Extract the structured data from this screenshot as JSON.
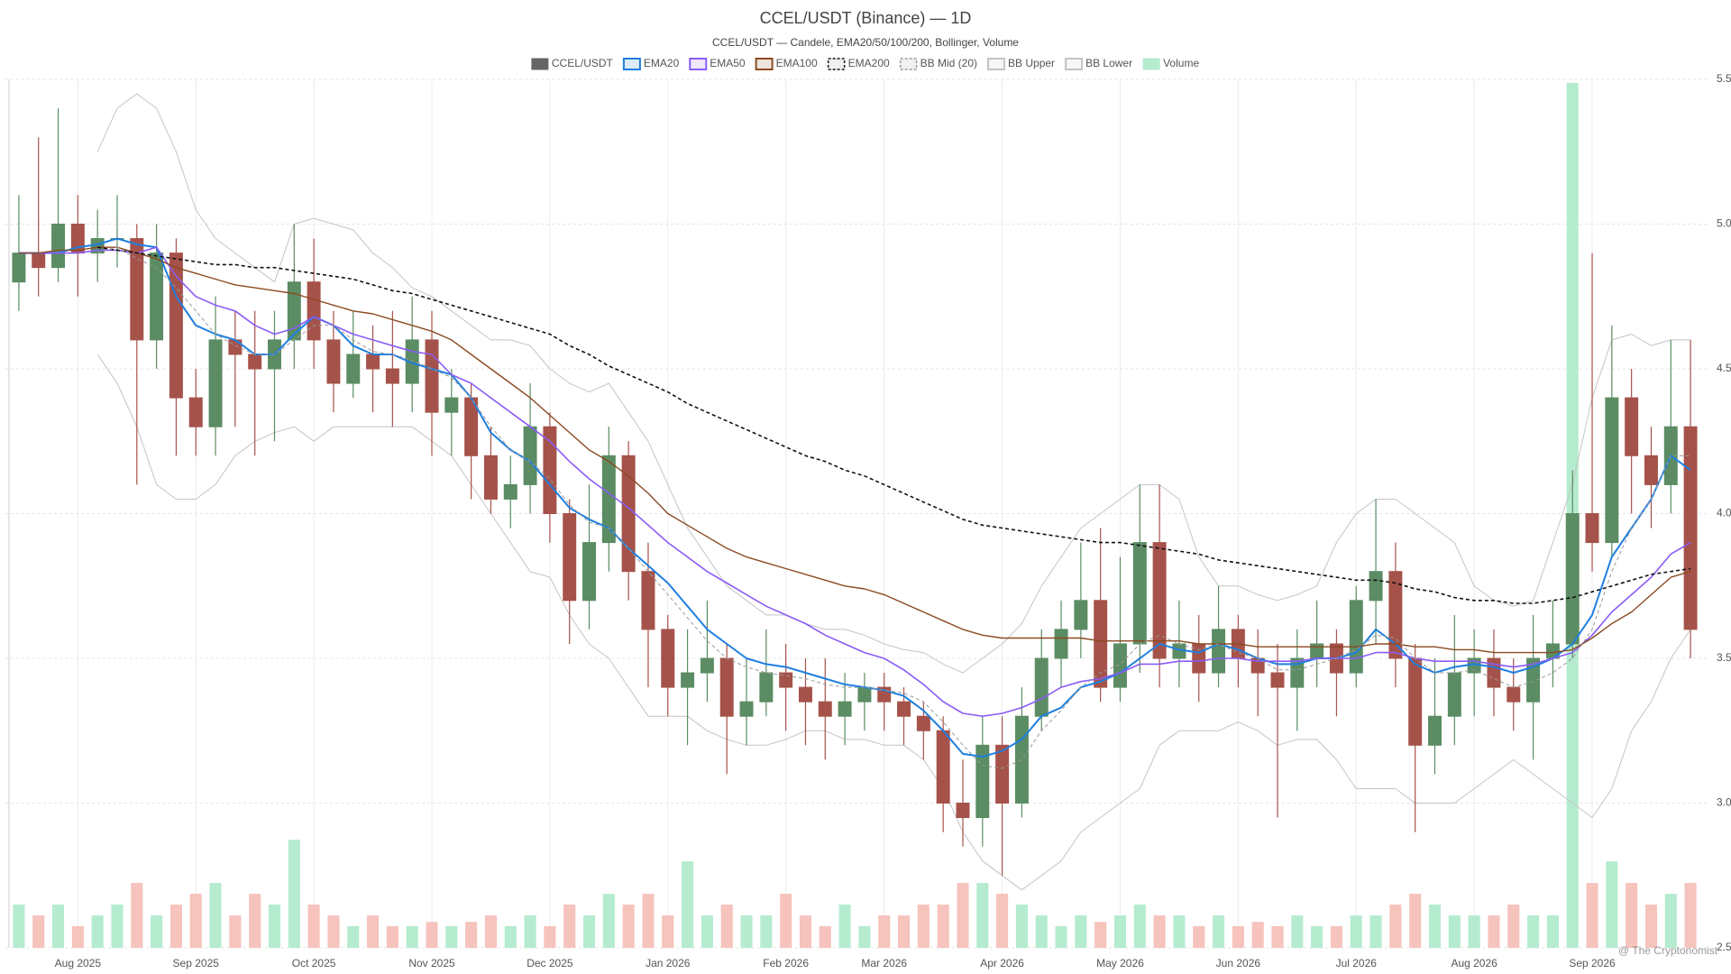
{
  "chart_data": {
    "type": "candlestick",
    "title": "CCEL/USDT (Binance) — 1D",
    "subtitle": "CCEL/USDT — Candele, EMA20/50/100/200, Bollinger, Volume",
    "watermark": "@ The Cryptonomist",
    "legend": "top",
    "grid": true,
    "candle_name": "CCEL/USDT",
    "candle_color": "#666666",
    "up_color": "#5b8c63",
    "down_color": "#a5524a",
    "categories": [
      null,
      null,
      null,
      "Aug 2025",
      null,
      null,
      null,
      null,
      null,
      "Sep 2025",
      null,
      null,
      null,
      null,
      null,
      "Oct 2025",
      null,
      null,
      null,
      null,
      null,
      "Nov 2025",
      null,
      null,
      null,
      null,
      null,
      "Dec 2025",
      null,
      null,
      null,
      null,
      null,
      "Jan 2026",
      null,
      null,
      null,
      null,
      null,
      "Feb 2026",
      null,
      null,
      null,
      null,
      "Mar 2026",
      null,
      null,
      null,
      null,
      null,
      "Apr 2026",
      null,
      null,
      null,
      null,
      null,
      "May 2026",
      null,
      null,
      null,
      null,
      null,
      "Jun 2026",
      null,
      null,
      null,
      null,
      null,
      "Jul 2026",
      null,
      null,
      null,
      null,
      null,
      "Aug 2026",
      null,
      null,
      null,
      null,
      null,
      "Sep 2026",
      null,
      null,
      null,
      null,
      null
    ],
    "open": [
      4.8,
      4.9,
      4.85,
      5.0,
      4.9,
      4.95,
      4.95,
      4.6,
      4.9,
      4.4,
      4.3,
      4.6,
      4.55,
      4.5,
      4.6,
      4.8,
      4.6,
      4.45,
      4.55,
      4.5,
      4.45,
      4.6,
      4.35,
      4.4,
      4.2,
      4.05,
      4.1,
      4.3,
      4.0,
      3.7,
      3.9,
      4.2,
      3.8,
      3.6,
      3.4,
      3.45,
      3.5,
      3.3,
      3.35,
      3.45,
      3.4,
      3.35,
      3.3,
      3.35,
      3.4,
      3.35,
      3.3,
      3.25,
      3.0,
      2.95,
      3.2,
      3.0,
      3.3,
      3.5,
      3.6,
      3.7,
      3.4,
      3.55,
      3.9,
      3.5,
      3.55,
      3.45,
      3.6,
      3.5,
      3.45,
      3.4,
      3.5,
      3.55,
      3.45,
      3.7,
      3.8,
      3.5,
      3.2,
      3.3,
      3.45,
      3.5,
      3.4,
      3.35,
      3.5,
      3.55,
      4.0,
      3.9,
      4.4,
      4.2,
      4.1,
      4.3
    ],
    "high": [
      5.1,
      5.3,
      5.4,
      5.1,
      5.05,
      5.1,
      5.0,
      5.0,
      4.95,
      4.5,
      4.75,
      4.7,
      4.7,
      4.7,
      5.0,
      4.95,
      4.7,
      4.7,
      4.65,
      4.7,
      4.75,
      4.7,
      4.5,
      4.45,
      4.3,
      4.2,
      4.45,
      4.35,
      4.05,
      4.1,
      4.3,
      4.25,
      3.9,
      3.65,
      3.6,
      3.7,
      3.55,
      3.5,
      3.6,
      3.55,
      3.5,
      3.5,
      3.45,
      3.45,
      3.45,
      3.4,
      3.35,
      3.3,
      3.15,
      3.3,
      3.3,
      3.4,
      3.6,
      3.7,
      3.9,
      3.95,
      3.85,
      4.1,
      4.1,
      3.7,
      3.65,
      3.75,
      3.65,
      3.6,
      3.55,
      3.6,
      3.7,
      3.6,
      3.75,
      4.05,
      3.9,
      3.55,
      3.5,
      3.65,
      3.6,
      3.6,
      3.5,
      3.65,
      3.7,
      4.15,
      4.9,
      4.65,
      4.5,
      4.3,
      4.6,
      4.6
    ],
    "low": [
      4.7,
      4.75,
      4.8,
      4.75,
      4.8,
      4.85,
      4.1,
      4.5,
      4.2,
      4.2,
      4.2,
      4.3,
      4.2,
      4.25,
      4.5,
      4.5,
      4.35,
      4.4,
      4.35,
      4.3,
      4.35,
      4.2,
      4.2,
      4.05,
      4.0,
      3.95,
      4.0,
      3.9,
      3.55,
      3.6,
      3.8,
      3.7,
      3.4,
      3.3,
      3.2,
      3.35,
      3.1,
      3.2,
      3.3,
      3.25,
      3.2,
      3.15,
      3.2,
      3.25,
      3.25,
      3.2,
      3.15,
      2.9,
      2.85,
      2.85,
      2.75,
      2.95,
      3.25,
      3.4,
      3.5,
      3.35,
      3.35,
      3.45,
      3.4,
      3.4,
      3.35,
      3.4,
      3.4,
      3.3,
      2.95,
      3.25,
      3.4,
      3.3,
      3.4,
      3.55,
      3.4,
      2.9,
      3.1,
      3.2,
      3.3,
      3.3,
      3.25,
      3.15,
      3.4,
      3.5,
      3.8,
      3.85,
      4.0,
      3.95,
      4.0,
      3.5
    ],
    "close": [
      4.9,
      4.85,
      5.0,
      4.9,
      4.95,
      4.95,
      4.6,
      4.9,
      4.4,
      4.3,
      4.6,
      4.55,
      4.5,
      4.6,
      4.8,
      4.6,
      4.45,
      4.55,
      4.5,
      4.45,
      4.6,
      4.35,
      4.4,
      4.2,
      4.05,
      4.1,
      4.3,
      4.0,
      3.7,
      3.9,
      4.2,
      3.8,
      3.6,
      3.4,
      3.45,
      3.5,
      3.3,
      3.35,
      3.45,
      3.4,
      3.35,
      3.3,
      3.35,
      3.4,
      3.35,
      3.3,
      3.25,
      3.0,
      2.95,
      3.2,
      3.0,
      3.3,
      3.5,
      3.6,
      3.7,
      3.4,
      3.55,
      3.9,
      3.5,
      3.55,
      3.45,
      3.6,
      3.5,
      3.45,
      3.4,
      3.5,
      3.55,
      3.45,
      3.7,
      3.8,
      3.5,
      3.2,
      3.3,
      3.45,
      3.5,
      3.4,
      3.35,
      3.5,
      3.55,
      4.0,
      3.9,
      4.4,
      4.2,
      4.1,
      4.3,
      3.6
    ],
    "series": [
      {
        "name": "EMA20",
        "color": "#1e7fe0",
        "width": 2,
        "dash": false,
        "values": [
          4.9,
          4.9,
          4.9,
          4.92,
          4.93,
          4.95,
          4.93,
          4.92,
          4.75,
          4.65,
          4.62,
          4.6,
          4.55,
          4.55,
          4.62,
          4.68,
          4.65,
          4.58,
          4.55,
          4.55,
          4.52,
          4.5,
          4.48,
          4.4,
          4.28,
          4.22,
          4.18,
          4.1,
          4.02,
          3.98,
          3.95,
          3.88,
          3.82,
          3.76,
          3.68,
          3.6,
          3.55,
          3.5,
          3.48,
          3.47,
          3.45,
          3.43,
          3.41,
          3.4,
          3.39,
          3.37,
          3.32,
          3.25,
          3.17,
          3.16,
          3.18,
          3.22,
          3.3,
          3.33,
          3.4,
          3.42,
          3.45,
          3.5,
          3.55,
          3.53,
          3.52,
          3.55,
          3.53,
          3.5,
          3.48,
          3.48,
          3.5,
          3.5,
          3.52,
          3.6,
          3.55,
          3.48,
          3.45,
          3.47,
          3.48,
          3.47,
          3.45,
          3.47,
          3.5,
          3.55,
          3.65,
          3.85,
          3.95,
          4.05,
          4.2,
          4.15
        ]
      },
      {
        "name": "EMA50",
        "color": "#8b5cf6",
        "width": 1.6,
        "dash": false,
        "values": [
          4.9,
          4.9,
          4.9,
          4.9,
          4.91,
          4.91,
          4.9,
          4.92,
          4.82,
          4.75,
          4.72,
          4.7,
          4.65,
          4.62,
          4.64,
          4.68,
          4.65,
          4.62,
          4.6,
          4.58,
          4.56,
          4.55,
          4.48,
          4.45,
          4.4,
          4.35,
          4.3,
          4.25,
          4.18,
          4.12,
          4.07,
          4.02,
          3.96,
          3.9,
          3.85,
          3.8,
          3.76,
          3.72,
          3.68,
          3.65,
          3.62,
          3.58,
          3.55,
          3.52,
          3.5,
          3.46,
          3.41,
          3.35,
          3.31,
          3.3,
          3.31,
          3.33,
          3.36,
          3.4,
          3.42,
          3.43,
          3.45,
          3.48,
          3.48,
          3.49,
          3.49,
          3.5,
          3.5,
          3.49,
          3.49,
          3.49,
          3.5,
          3.5,
          3.5,
          3.52,
          3.52,
          3.5,
          3.49,
          3.49,
          3.49,
          3.48,
          3.47,
          3.48,
          3.5,
          3.52,
          3.58,
          3.66,
          3.72,
          3.78,
          3.86,
          3.9
        ]
      },
      {
        "name": "EMA100",
        "color": "#8b4a22",
        "width": 1.4,
        "dash": false,
        "values": [
          4.9,
          4.9,
          4.91,
          4.91,
          4.92,
          4.92,
          4.9,
          4.88,
          4.85,
          4.83,
          4.81,
          4.79,
          4.78,
          4.77,
          4.76,
          4.74,
          4.72,
          4.7,
          4.69,
          4.67,
          4.65,
          4.63,
          4.6,
          4.55,
          4.5,
          4.45,
          4.4,
          4.34,
          4.28,
          4.22,
          4.18,
          4.13,
          4.07,
          4.0,
          3.96,
          3.92,
          3.88,
          3.85,
          3.83,
          3.81,
          3.79,
          3.77,
          3.75,
          3.74,
          3.72,
          3.69,
          3.66,
          3.63,
          3.6,
          3.58,
          3.57,
          3.57,
          3.57,
          3.57,
          3.57,
          3.56,
          3.56,
          3.56,
          3.56,
          3.56,
          3.55,
          3.55,
          3.55,
          3.54,
          3.54,
          3.54,
          3.54,
          3.54,
          3.54,
          3.55,
          3.55,
          3.54,
          3.54,
          3.53,
          3.53,
          3.52,
          3.52,
          3.52,
          3.52,
          3.53,
          3.57,
          3.62,
          3.66,
          3.72,
          3.78,
          3.8
        ]
      },
      {
        "name": "EMA200",
        "color": "#111111",
        "width": 1.6,
        "dash": true,
        "values": [
          null,
          null,
          null,
          null,
          4.92,
          4.91,
          4.9,
          4.89,
          4.88,
          4.87,
          4.86,
          4.86,
          4.85,
          4.85,
          4.84,
          4.83,
          4.82,
          4.81,
          4.79,
          4.77,
          4.76,
          4.74,
          4.72,
          4.7,
          4.68,
          4.66,
          4.64,
          4.62,
          4.58,
          4.55,
          4.51,
          4.48,
          4.45,
          4.42,
          4.38,
          4.35,
          4.32,
          4.29,
          4.26,
          4.23,
          4.2,
          4.18,
          4.15,
          4.13,
          4.1,
          4.07,
          4.04,
          4.01,
          3.98,
          3.96,
          3.95,
          3.94,
          3.93,
          3.92,
          3.91,
          3.9,
          3.9,
          3.89,
          3.88,
          3.87,
          3.86,
          3.84,
          3.83,
          3.82,
          3.81,
          3.8,
          3.79,
          3.78,
          3.77,
          3.77,
          3.76,
          3.74,
          3.73,
          3.71,
          3.7,
          3.7,
          3.69,
          3.69,
          3.7,
          3.71,
          3.73,
          3.75,
          3.77,
          3.79,
          3.8,
          3.81
        ]
      },
      {
        "name": "BB Mid (20)",
        "color": "#999999",
        "width": 1,
        "dash": true,
        "values": [
          null,
          null,
          null,
          null,
          4.9,
          4.92,
          4.88,
          4.85,
          4.78,
          4.7,
          4.62,
          4.58,
          4.55,
          4.55,
          4.6,
          4.65,
          4.65,
          4.6,
          4.56,
          4.55,
          4.53,
          4.5,
          4.47,
          4.4,
          4.3,
          4.22,
          4.18,
          4.12,
          4.03,
          3.97,
          3.95,
          3.88,
          3.8,
          3.72,
          3.64,
          3.56,
          3.5,
          3.47,
          3.45,
          3.44,
          3.43,
          3.41,
          3.4,
          3.4,
          3.39,
          3.38,
          3.35,
          3.28,
          3.2,
          3.13,
          3.12,
          3.15,
          3.25,
          3.32,
          3.4,
          3.45,
          3.48,
          3.55,
          3.58,
          3.55,
          3.53,
          3.55,
          3.52,
          3.5,
          3.46,
          3.46,
          3.48,
          3.5,
          3.53,
          3.58,
          3.57,
          3.5,
          3.45,
          3.45,
          3.46,
          3.43,
          3.4,
          3.42,
          3.45,
          3.5,
          3.6,
          3.8,
          3.95,
          4.05,
          4.2,
          4.2
        ]
      },
      {
        "name": "BB Upper",
        "color": "#c4c4c4",
        "width": 1,
        "dash": false,
        "values": [
          null,
          null,
          null,
          null,
          5.25,
          5.4,
          5.45,
          5.4,
          5.25,
          5.05,
          4.95,
          4.9,
          4.85,
          4.8,
          5.0,
          5.02,
          5.0,
          4.98,
          4.9,
          4.85,
          4.78,
          4.75,
          4.7,
          4.65,
          4.6,
          4.6,
          4.58,
          4.5,
          4.45,
          4.42,
          4.45,
          4.35,
          4.25,
          4.1,
          3.95,
          3.85,
          3.75,
          3.7,
          3.65,
          3.65,
          3.62,
          3.6,
          3.6,
          3.58,
          3.55,
          3.53,
          3.52,
          3.48,
          3.45,
          3.5,
          3.55,
          3.62,
          3.75,
          3.85,
          3.95,
          4.0,
          4.05,
          4.1,
          4.1,
          4.05,
          3.85,
          3.75,
          3.75,
          3.72,
          3.7,
          3.72,
          3.75,
          3.9,
          4.0,
          4.05,
          4.05,
          4.0,
          3.95,
          3.9,
          3.75,
          3.7,
          3.68,
          3.7,
          3.9,
          4.1,
          4.4,
          4.6,
          4.62,
          4.58,
          4.6,
          4.6
        ]
      },
      {
        "name": "BB Lower",
        "color": "#c4c4c4",
        "width": 1,
        "dash": false,
        "values": [
          null,
          null,
          null,
          null,
          4.55,
          4.45,
          4.3,
          4.1,
          4.05,
          4.05,
          4.1,
          4.2,
          4.25,
          4.28,
          4.3,
          4.25,
          4.3,
          4.3,
          4.3,
          4.3,
          4.3,
          4.25,
          4.2,
          4.1,
          4.0,
          3.9,
          3.8,
          3.78,
          3.65,
          3.55,
          3.5,
          3.4,
          3.3,
          3.3,
          3.3,
          3.25,
          3.22,
          3.2,
          3.2,
          3.22,
          3.25,
          3.25,
          3.22,
          3.22,
          3.2,
          3.2,
          3.15,
          3.05,
          2.9,
          2.8,
          2.75,
          2.7,
          2.75,
          2.8,
          2.9,
          2.95,
          3.0,
          3.05,
          3.2,
          3.25,
          3.25,
          3.25,
          3.28,
          3.25,
          3.2,
          3.22,
          3.22,
          3.15,
          3.05,
          3.05,
          3.05,
          3.0,
          3.0,
          3.0,
          3.05,
          3.1,
          3.15,
          3.1,
          3.05,
          3.0,
          2.95,
          3.05,
          3.25,
          3.35,
          3.5,
          3.6
        ]
      }
    ],
    "volume": {
      "name": "Volume",
      "color": "#b5ebcf",
      "down_color": "#f6c3bd",
      "values": [
        2,
        1.5,
        2,
        1,
        1.5,
        2,
        3,
        1.5,
        2,
        2.5,
        3,
        1.5,
        2.5,
        2,
        5,
        2,
        1.5,
        1,
        1.5,
        1,
        1,
        1.2,
        1,
        1.2,
        1.5,
        1,
        1.5,
        1,
        2,
        1.5,
        2.5,
        2,
        2.5,
        1.5,
        4,
        1.5,
        2,
        1.5,
        1.5,
        2.5,
        1.5,
        1,
        2,
        1,
        1.5,
        1.5,
        2,
        2,
        3,
        3,
        2.5,
        2,
        1.5,
        1,
        1.5,
        1.2,
        1.5,
        2,
        1.5,
        1.5,
        1,
        1.5,
        1,
        1.2,
        1,
        1.5,
        1,
        1,
        1.5,
        1.5,
        2,
        2.5,
        2,
        1.5,
        1.5,
        1.5,
        2,
        1.5,
        1.5,
        40,
        3,
        4,
        3,
        2,
        2.5,
        3
      ]
    },
    "ylim": [
      2.5,
      5.5
    ],
    "yticks": [
      2.5,
      {
        "value": 3,
        "label": "3.0"
      },
      3.5,
      {
        "value": 4,
        "label": "4.0"
      },
      4.5,
      {
        "value": 5,
        "label": "5.0"
      },
      5.5
    ]
  }
}
